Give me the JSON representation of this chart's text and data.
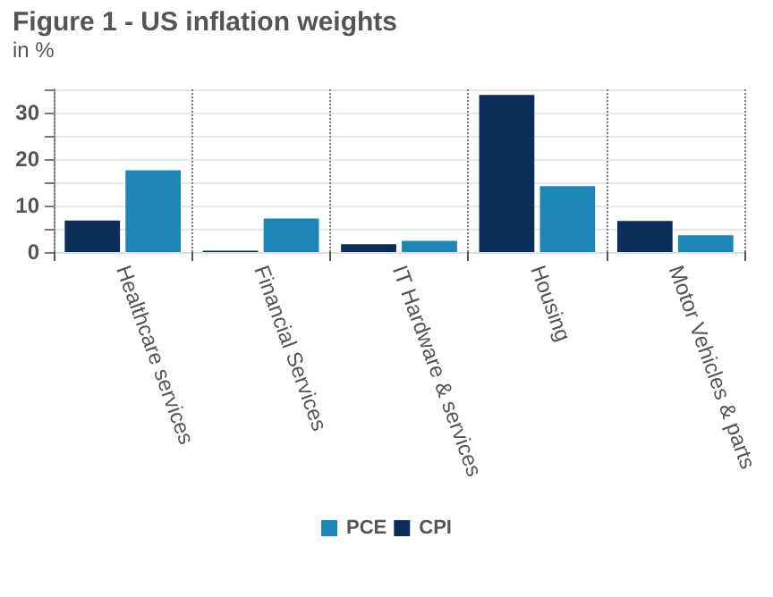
{
  "chart_data": {
    "type": "bar",
    "title": "Figure 1 - US inflation weights",
    "subtitle": "in %",
    "categories": [
      "Healthcare services",
      "Financial Services",
      "IT Hardware & services",
      "Housing",
      "Motor Vehicles & parts"
    ],
    "series": [
      {
        "name": "CPI",
        "color": "#0a2d5a",
        "values": [
          6.8,
          0.3,
          1.7,
          33.8,
          6.7
        ]
      },
      {
        "name": "PCE",
        "color": "#1c87b6",
        "values": [
          17.6,
          7.2,
          2.4,
          14.2,
          3.6
        ]
      }
    ],
    "ylim": [
      0,
      35
    ],
    "yticks": [
      0,
      {
        "value": 5,
        "label": null
      },
      10,
      {
        "value": 15,
        "label": null
      },
      20,
      {
        "value": 25,
        "label": null
      },
      30,
      {
        "value": 35,
        "label": null
      }
    ],
    "grid": true,
    "legend": "bottom"
  }
}
